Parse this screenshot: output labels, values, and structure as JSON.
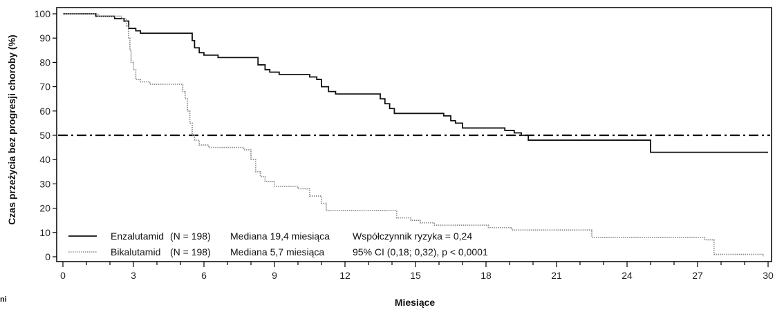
{
  "chart_data": {
    "type": "line",
    "xlabel": "Miesiące",
    "ylabel": "Czas przeżycia bez progresji choroby (%)",
    "xlim": [
      0,
      30
    ],
    "ylim": [
      0,
      100
    ],
    "x_ticks": [
      0,
      3,
      6,
      9,
      12,
      15,
      18,
      21,
      24,
      27,
      30
    ],
    "y_ticks": [
      0,
      10,
      20,
      30,
      40,
      50,
      60,
      70,
      80,
      90,
      100
    ],
    "reference_line": {
      "y": 50,
      "style": "dash-dot"
    },
    "series": [
      {
        "name": "Enzalutamid",
        "style": "solid",
        "color": "#111111",
        "x": [
          0,
          1.4,
          2.2,
          2.6,
          2.8,
          3.1,
          3.3,
          3.6,
          5.5,
          5.6,
          5.8,
          6.0,
          6.2,
          6.6,
          7.0,
          8.3,
          8.6,
          8.8,
          9.2,
          10.5,
          10.8,
          11.0,
          11.3,
          11.6,
          12.5,
          13.5,
          13.7,
          13.9,
          14.1,
          16.2,
          16.5,
          16.7,
          17.0,
          18.8,
          19.2,
          19.5,
          19.8,
          21.0,
          24.9,
          25.0,
          30.0
        ],
        "y": [
          100,
          99,
          98,
          97,
          94,
          93,
          92,
          92,
          89,
          86,
          84,
          83,
          83,
          82,
          82,
          79,
          77,
          76,
          75,
          74,
          73,
          70,
          68,
          67,
          67,
          65,
          63,
          61,
          59,
          58,
          56,
          55,
          53,
          52,
          51,
          50,
          48,
          48,
          48,
          43,
          43
        ]
      },
      {
        "name": "Bikalutamid",
        "style": "dotted",
        "color": "#888888",
        "x": [
          0,
          1.5,
          2.5,
          2.7,
          2.8,
          2.85,
          2.9,
          3.0,
          3.1,
          3.3,
          3.7,
          5.1,
          5.2,
          5.3,
          5.4,
          5.5,
          5.6,
          5.8,
          6.2,
          7.7,
          8.0,
          8.2,
          8.4,
          8.6,
          9.0,
          10.0,
          10.5,
          11.0,
          11.2,
          13.9,
          14.2,
          14.8,
          15.2,
          15.8,
          16.6,
          18.1,
          19.1,
          22.5,
          27.3,
          27.7,
          29.8
        ],
        "y": [
          100,
          99,
          98,
          95,
          90,
          85,
          80,
          77,
          73,
          72,
          71,
          68,
          65,
          60,
          55,
          50,
          48,
          46,
          45,
          44,
          40,
          35,
          33,
          31,
          29,
          28,
          25,
          22,
          19,
          19,
          16,
          15,
          14,
          13,
          13,
          12,
          11,
          8,
          7,
          1,
          0
        ]
      }
    ],
    "legend": {
      "placement": "bottom-left",
      "rows": [
        {
          "name": "Enzalutamid",
          "n": "(N = 198)",
          "median": "Mediana 19,4 miesiąca",
          "stat": "Współczynnik ryzyka = 0,24"
        },
        {
          "name": "Bikalutamid",
          "n": "(N = 198)",
          "median": "Mediana 5,7 miesiąca",
          "stat": "95% CI (0,18; 0,32), p < 0,0001"
        }
      ]
    },
    "grid": false
  },
  "page_fragment_left": "ni"
}
